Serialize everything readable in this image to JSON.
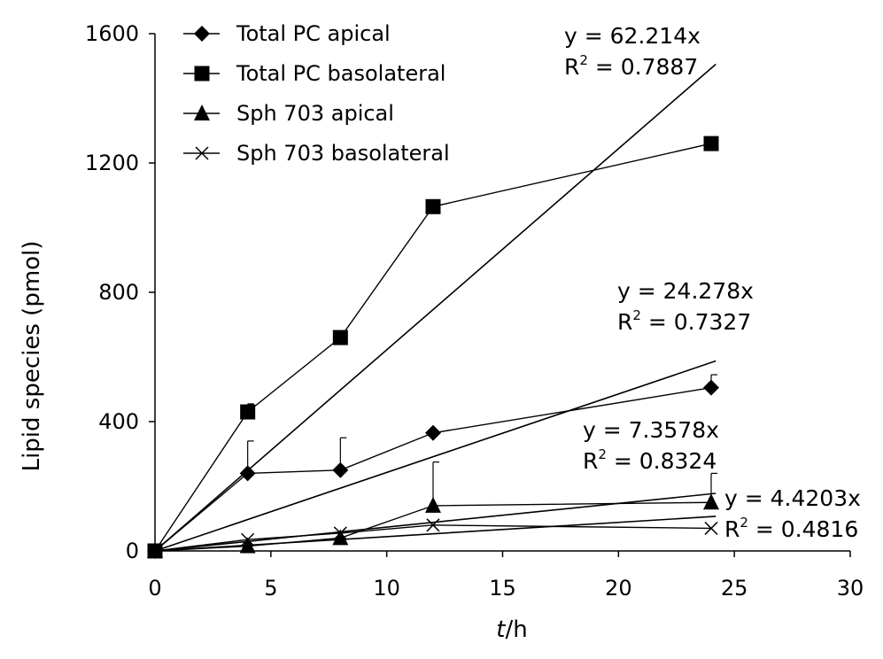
{
  "chart_data": {
    "type": "line",
    "xlabel_italic": "t",
    "xlabel_rest": "/h",
    "ylabel": "Lipid species (pmol)",
    "xlim": [
      0,
      30
    ],
    "ylim": [
      0,
      1600
    ],
    "x_ticks": [
      0,
      5,
      10,
      15,
      20,
      25,
      30
    ],
    "y_ticks": [
      0,
      400,
      800,
      1200,
      1600
    ],
    "x": [
      0,
      4,
      8,
      12,
      24
    ],
    "series": [
      {
        "name": "Total PC apical",
        "marker": "diamond",
        "values": [
          0,
          240,
          250,
          365,
          505
        ],
        "err": [
          0,
          100,
          100,
          0,
          40
        ],
        "slope": 24.278
      },
      {
        "name": "Total PC basolateral",
        "marker": "square",
        "values": [
          0,
          430,
          660,
          1065,
          1260
        ],
        "err": [
          0,
          25,
          0,
          0,
          0
        ],
        "slope": 62.214
      },
      {
        "name": "Sph 703 apical",
        "marker": "triangle",
        "values": [
          0,
          15,
          40,
          140,
          150
        ],
        "err": [
          0,
          0,
          0,
          135,
          90
        ],
        "slope": 7.3578
      },
      {
        "name": "Sph 703 basolateral",
        "marker": "x",
        "values": [
          0,
          35,
          55,
          80,
          70
        ],
        "err": [
          0,
          0,
          0,
          0,
          0
        ],
        "slope": 4.4203
      }
    ],
    "trendlines": [
      {
        "equation": "y = 62.214x",
        "r2_prefix": "R",
        "r2_sup": "2",
        "r2_rest": " = 0.7887"
      },
      {
        "equation": "y = 24.278x",
        "r2_prefix": "R",
        "r2_sup": "2",
        "r2_rest": " = 0.7327"
      },
      {
        "equation": "y = 7.3578x",
        "r2_prefix": "R",
        "r2_sup": "2",
        "r2_rest": " = 0.8324"
      },
      {
        "equation": "y = 4.4203x",
        "r2_prefix": "R",
        "r2_sup": "2",
        "r2_rest": " = 0.4816"
      }
    ],
    "legend_position": "top-left",
    "grid": false
  }
}
